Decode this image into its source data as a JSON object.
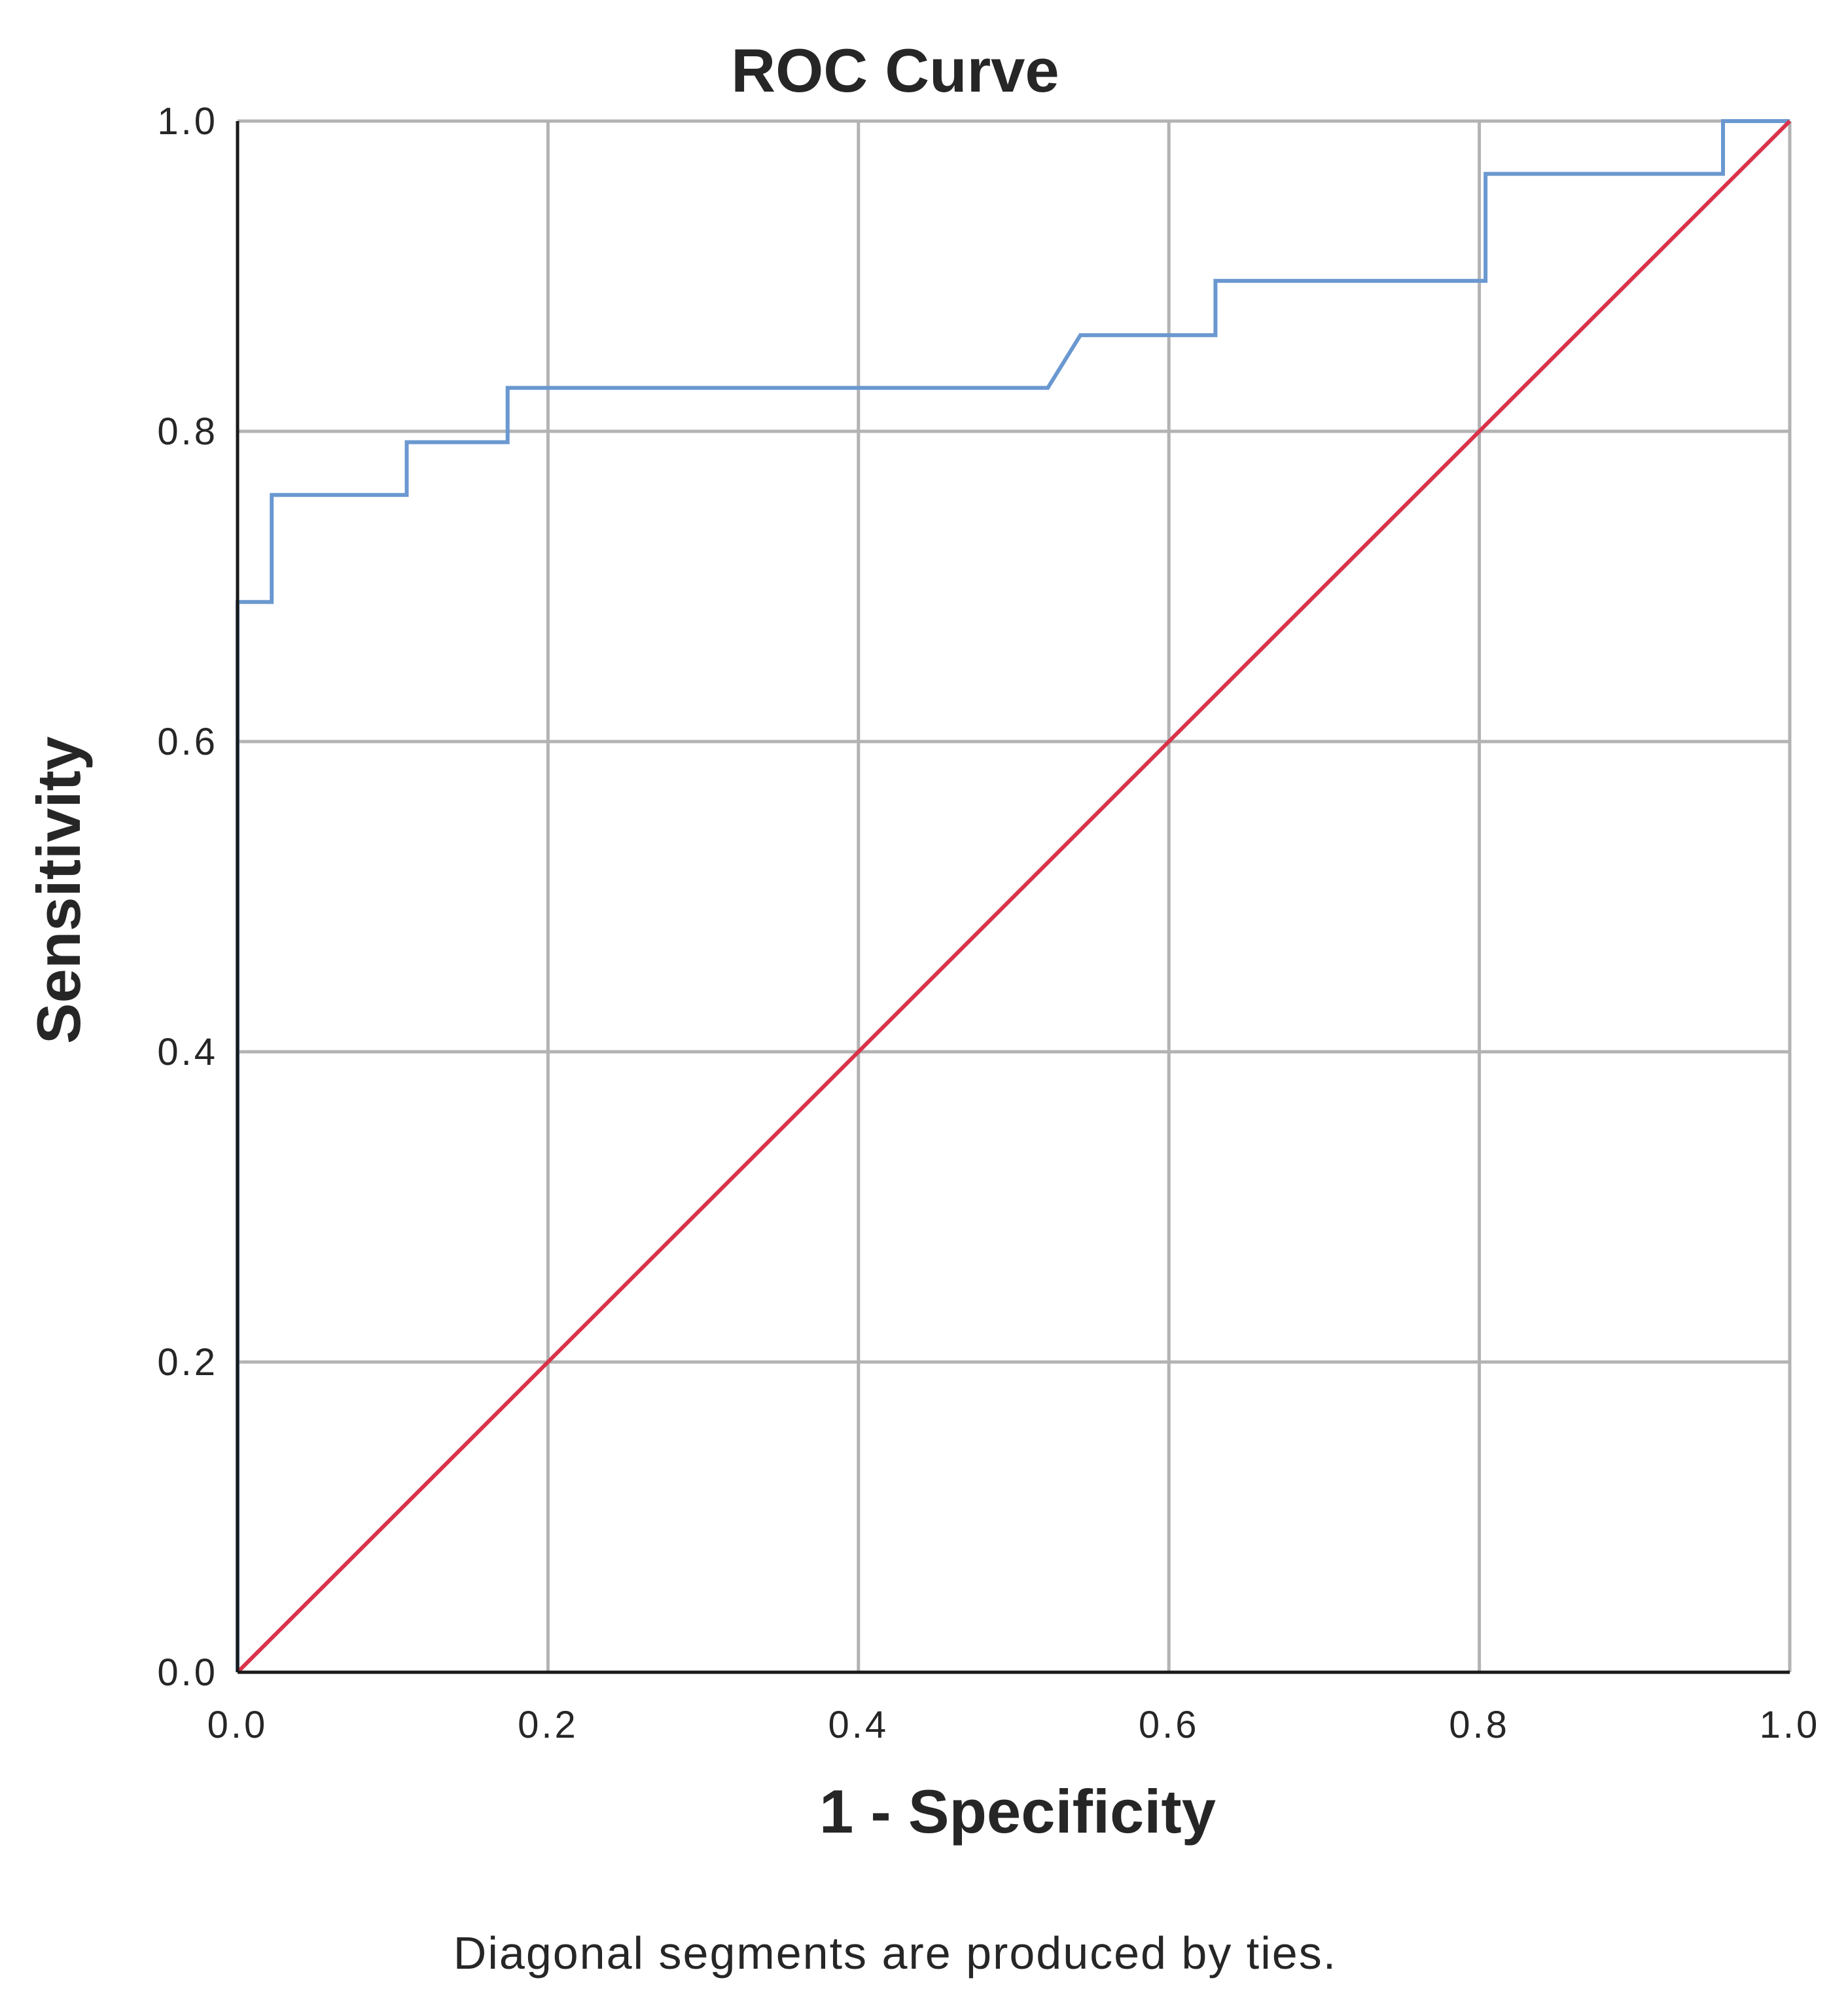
{
  "chart_data": {
    "type": "line",
    "title": "ROC Curve",
    "xlabel": "1 - Specificity",
    "ylabel": "Sensitivity",
    "footnote": "Diagonal segments are produced by ties.",
    "xlim": [
      0.0,
      1.0
    ],
    "ylim": [
      0.0,
      1.0
    ],
    "xticks": [
      "0.0",
      "0.2",
      "0.4",
      "0.6",
      "0.8",
      "1.0"
    ],
    "yticks": [
      "0.0",
      "0.2",
      "0.4",
      "0.6",
      "0.8",
      "1.0"
    ],
    "grid": true,
    "series": [
      {
        "color": "#6a98d0",
        "x": [
          0.0,
          0.0,
          0.022,
          0.022,
          0.109,
          0.109,
          0.174,
          0.174,
          0.522,
          0.543,
          0.63,
          0.63,
          0.804,
          0.804,
          0.957,
          0.957,
          1.0
        ],
        "y": [
          0.0,
          0.69,
          0.69,
          0.759,
          0.759,
          0.793,
          0.793,
          0.828,
          0.828,
          0.862,
          0.862,
          0.897,
          0.897,
          0.966,
          0.966,
          1.0,
          1.0
        ]
      },
      {
        "color": "#d9334a",
        "x": [
          0.0,
          1.0
        ],
        "y": [
          0.0,
          1.0
        ]
      }
    ]
  }
}
